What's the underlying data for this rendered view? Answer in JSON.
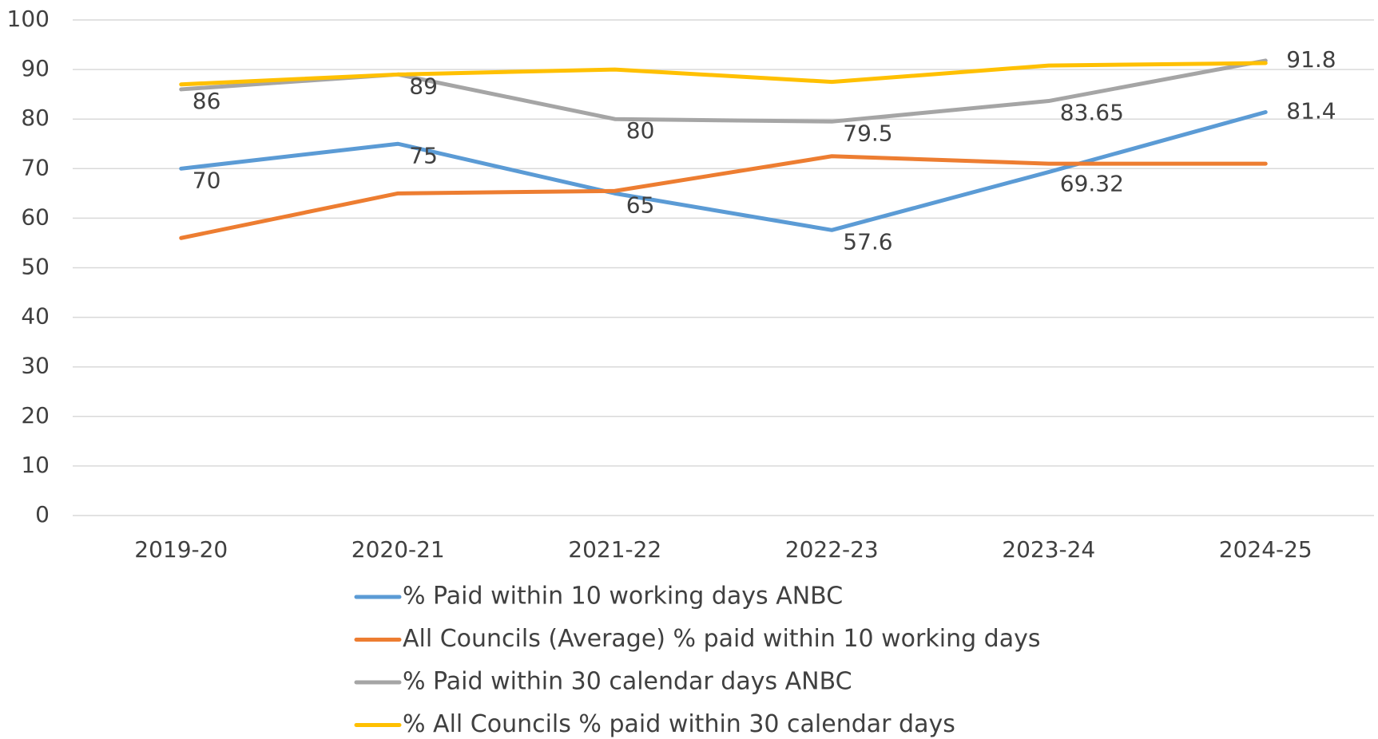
{
  "chart_data": {
    "type": "line",
    "categories": [
      "2019-20",
      "2020-21",
      "2021-22",
      "2022-23",
      "2023-24",
      "2024-25"
    ],
    "series": [
      {
        "name": "% Paid within 10 working days ANBC",
        "color": "#5b9bd5",
        "values": [
          70,
          75,
          65,
          57.6,
          69.32,
          81.4
        ],
        "data_labels": true
      },
      {
        "name": "All Councils (Average) % paid within 10 working days",
        "color": "#ed7d31",
        "values": [
          56,
          65,
          65.5,
          72.5,
          71,
          71
        ],
        "data_labels": false
      },
      {
        "name": "% Paid within 30 calendar days ANBC",
        "color": "#a5a5a5",
        "values": [
          86,
          89,
          80,
          79.5,
          83.65,
          91.8
        ],
        "data_labels": true
      },
      {
        "name": "% All Councils % paid within 30 calendar days",
        "color": "#ffc000",
        "values": [
          87,
          89,
          90,
          87.5,
          90.8,
          91.3
        ],
        "data_labels": false
      }
    ],
    "ylim": [
      0,
      100
    ],
    "yticks": [
      0,
      10,
      20,
      30,
      40,
      50,
      60,
      70,
      80,
      90,
      100
    ],
    "grid": true,
    "legend": "bottom"
  }
}
